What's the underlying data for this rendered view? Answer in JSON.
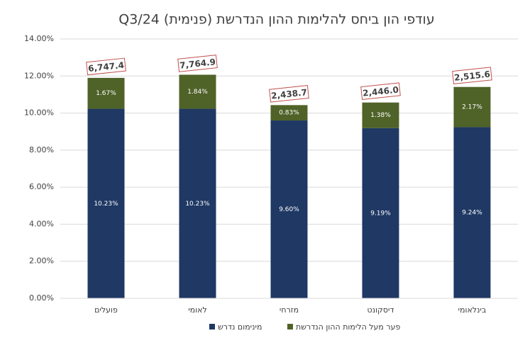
{
  "chart_data": {
    "type": "stacked-bar",
    "title": "עודפי הון ביחס להלימות ההון הנדרשת (פנימית)  Q3/24",
    "categories": [
      "פועלים",
      "לאומי",
      "מזרחי",
      "דיסקונט",
      "בינלאומי"
    ],
    "series": [
      {
        "name": "מינימום נדרש",
        "color": "#1f3864",
        "values": [
          10.23,
          10.23,
          9.6,
          9.19,
          9.24
        ],
        "value_labels": [
          "10.23%",
          "10.23%",
          "9.60%",
          "9.19%",
          "9.24%"
        ]
      },
      {
        "name": "פער מעל הלימות ההון הנדרשת",
        "color": "#4f6228",
        "values": [
          1.67,
          1.84,
          0.83,
          1.38,
          2.17
        ],
        "value_labels": [
          "1.67%",
          "1.84%",
          "0.83%",
          "1.38%",
          "2.17%"
        ]
      }
    ],
    "annotations": [
      "6,747.4",
      "7,764.9",
      "2,438.7",
      "2,446.0",
      "2,515.6"
    ],
    "ylim": [
      0,
      14
    ],
    "yticks": [
      {
        "value": 0,
        "label": "0.00%"
      },
      {
        "value": 2,
        "label": "2.00%"
      },
      {
        "value": 4,
        "label": "4.00%"
      },
      {
        "value": 6,
        "label": "6.00%"
      },
      {
        "value": 8,
        "label": "8.00%"
      },
      {
        "value": 10,
        "label": "10.00%"
      },
      {
        "value": 12,
        "label": "12.00%"
      },
      {
        "value": 14,
        "label": "14.00%"
      }
    ],
    "grid": true
  }
}
